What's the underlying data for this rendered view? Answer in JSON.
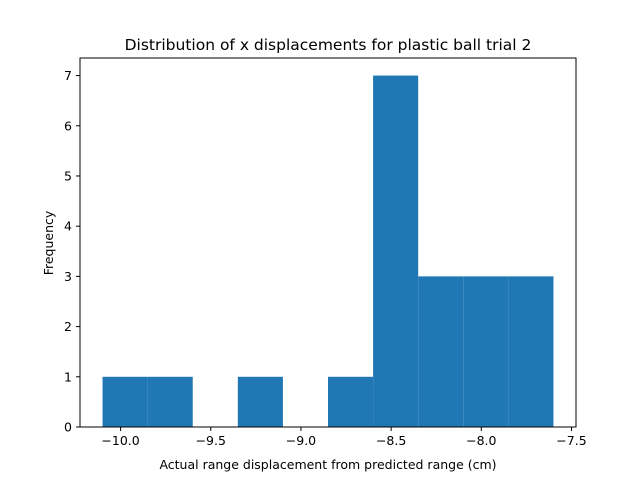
{
  "chart_data": {
    "type": "bar",
    "title": "Distribution of x displacements for plastic ball trial 2",
    "xlabel": "Actual range displacement from predicted range (cm)",
    "ylabel": "Frequency",
    "bar_color": "#1f77b4",
    "bins": [
      {
        "x0": -10.1,
        "x1": -9.85,
        "count": 1
      },
      {
        "x0": -9.85,
        "x1": -9.6,
        "count": 1
      },
      {
        "x0": -9.6,
        "x1": -9.35,
        "count": 0
      },
      {
        "x0": -9.35,
        "x1": -9.1,
        "count": 1
      },
      {
        "x0": -9.1,
        "x1": -8.85,
        "count": 0
      },
      {
        "x0": -8.85,
        "x1": -8.6,
        "count": 1
      },
      {
        "x0": -8.6,
        "x1": -8.35,
        "count": 7
      },
      {
        "x0": -8.35,
        "x1": -8.1,
        "count": 3
      },
      {
        "x0": -8.1,
        "x1": -7.85,
        "count": 3
      },
      {
        "x0": -7.85,
        "x1": -7.6,
        "count": 3
      }
    ],
    "xlim": [
      -10.225,
      -7.475
    ],
    "ylim": [
      0,
      7.35
    ],
    "xticks": [
      -10.0,
      -9.5,
      -9.0,
      -8.5,
      -8.0,
      -7.5
    ],
    "xtick_labels": [
      "−10.0",
      "−9.5",
      "−9.0",
      "−8.5",
      "−8.0",
      "−7.5"
    ],
    "yticks": [
      0,
      1,
      2,
      3,
      4,
      5,
      6,
      7
    ],
    "ytick_labels": [
      "0",
      "1",
      "2",
      "3",
      "4",
      "5",
      "6",
      "7"
    ],
    "grid": false
  }
}
